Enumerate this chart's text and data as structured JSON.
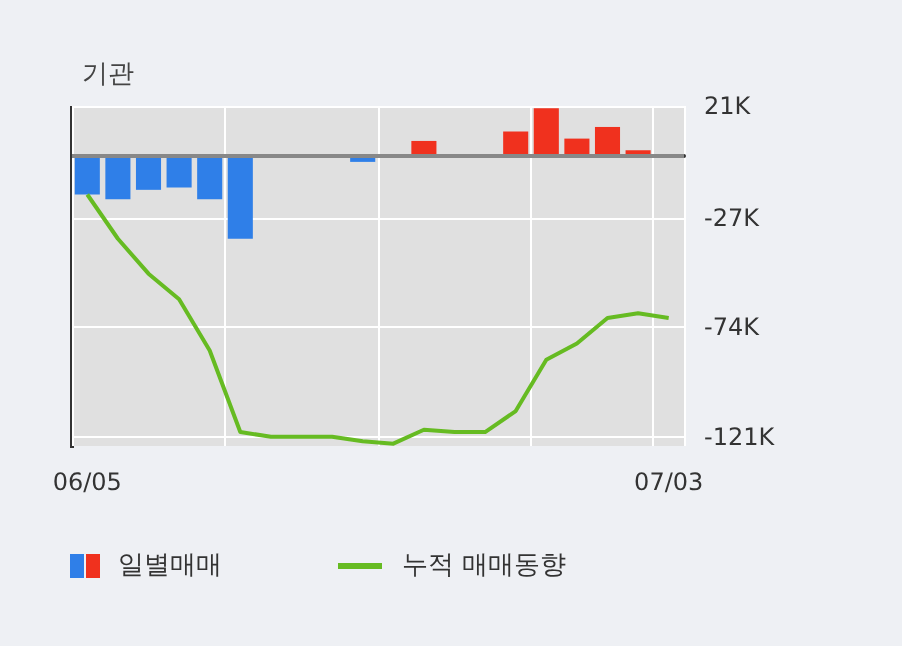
{
  "chart_data": {
    "type": "bar",
    "title": "기관",
    "categories": [
      "06/05",
      null,
      null,
      null,
      null,
      null,
      null,
      null,
      null,
      null,
      null,
      null,
      null,
      null,
      null,
      null,
      null,
      null,
      null,
      "07/03"
    ],
    "series": [
      {
        "name": "일별매매",
        "colors": [
          "#2f7fe8",
          "#2f7fe8",
          "#2f7fe8",
          "#2f7fe8",
          "#2f7fe8",
          "#2f7fe8",
          "#2f7fe8",
          "#2f7fe8",
          "#2f7fe8",
          "#2f7fe8",
          "#2f7fe8",
          "#f0311e",
          "#2f7fe8",
          "#2f7fe8",
          "#f0311e",
          "#f0311e",
          "#f0311e",
          "#f0311e",
          "#f0311e",
          "#2f7fe8"
        ],
        "values": [
          -17,
          -19,
          -15,
          -14,
          -19,
          -36,
          0,
          0,
          0,
          -3,
          0,
          6,
          0,
          0,
          10,
          20,
          7,
          12,
          2,
          0
        ]
      },
      {
        "name": "누적 매매동향",
        "type": "line",
        "color": "#66bb22",
        "values": [
          -17,
          -36,
          -51,
          -62,
          -84,
          -119,
          -121,
          -121,
          -121,
          -123,
          -124,
          -118,
          -119,
          -119,
          -110,
          -88,
          -81,
          -70,
          -68,
          -70
        ]
      }
    ],
    "ylim": [
      -125,
      21
    ],
    "yticks": [
      {
        "value": 21,
        "label": "21K"
      },
      {
        "value": -27,
        "label": "-27K"
      },
      {
        "value": -74,
        "label": "-74K"
      },
      {
        "value": -121,
        "label": "-121K"
      }
    ],
    "ref_lines": [
      {
        "axis": "y",
        "value": 0,
        "color": "#888888"
      }
    ],
    "grid": true,
    "legend": "bottom",
    "marker": "none"
  }
}
